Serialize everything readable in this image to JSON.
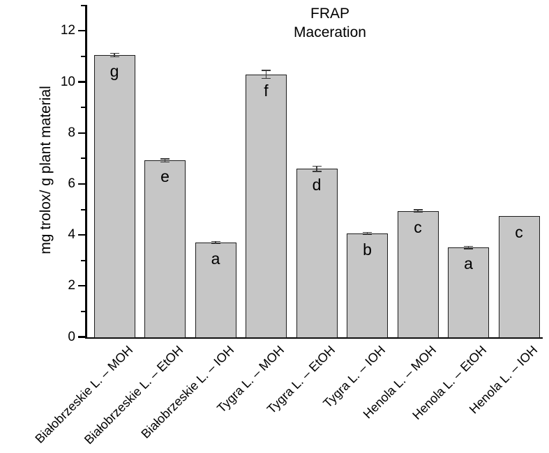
{
  "chart_data": {
    "type": "bar",
    "title_line1": "FRAP",
    "title_line2": "Maceration",
    "ylabel": "mg trolox/ g plant material",
    "xlabel": "",
    "categories": [
      "Białobrzeskie L. – MOH",
      "Białobrzeskie L. – EtOH",
      "Białobrzeskie L. – IOH",
      "Tygra L. – MOH",
      "Tygra L. – EtOH",
      "Tygra L. – IOH",
      "Henola L. – MOH",
      "Henola L. – EtOH",
      "Henola L. – IOH"
    ],
    "values": [
      11.05,
      6.92,
      3.7,
      10.3,
      6.59,
      4.06,
      4.94,
      3.5,
      4.74
    ],
    "errors": [
      0.07,
      0.06,
      0.04,
      0.16,
      0.1,
      0.04,
      0.05,
      0.05,
      0
    ],
    "significance_letters": [
      "g",
      "e",
      "a",
      "f",
      "d",
      "b",
      "c",
      "a",
      "c"
    ],
    "ylim": [
      0,
      13
    ],
    "yticks_major": [
      0,
      2,
      4,
      6,
      8,
      10,
      12
    ],
    "yticks_minor": [
      1,
      3,
      5,
      7,
      9,
      11,
      13
    ],
    "grid": "off",
    "legend": "none",
    "bar_fill": "#c6c6c6",
    "bar_edge": "#1c1c1c",
    "error_color": "#3a3a3a",
    "background": "#ffffff"
  }
}
